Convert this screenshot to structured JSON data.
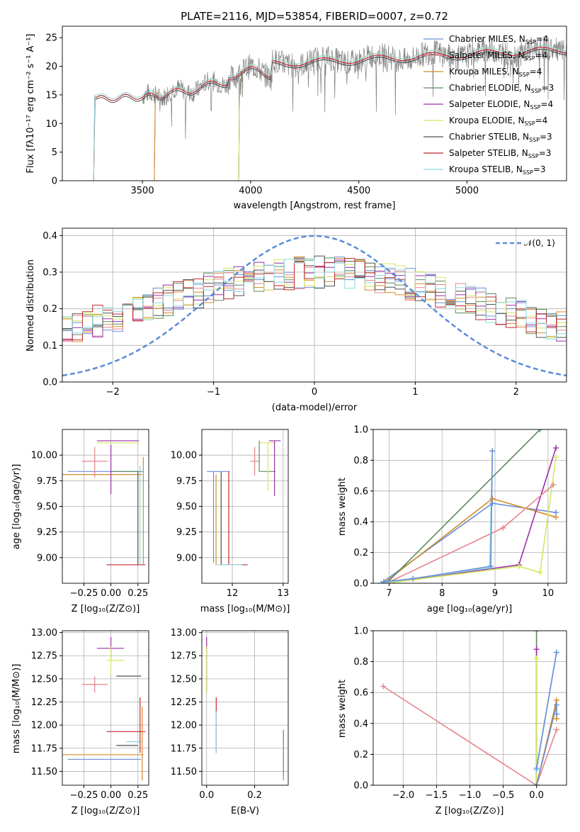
{
  "chart_data": [
    {
      "type": "line",
      "title": "PLATE=2116, MJD=53854, FIBERID=0007, z=0.72",
      "xlabel": "wavelength [Angstrom, rest frame]",
      "ylabel": "Flux [fλ10⁻¹⁷ erg cm⁻² s⁻¹ A⁻¹]",
      "xlim": [
        3130,
        5460
      ],
      "ylim": [
        0,
        27
      ],
      "xticks": [
        3500,
        4000,
        4500,
        5000
      ],
      "yticks": [
        0,
        5,
        10,
        15,
        20,
        25
      ],
      "grid": false,
      "legend_placement": "right",
      "observed_spectrum": {
        "color": "#808080",
        "start": 3280,
        "end": 5460
      },
      "legend": [
        {
          "label": "Chabrier MILES, N_SSP=4",
          "color": "#6a8fd6"
        },
        {
          "label": "Salpeter MILES, N_SSP=4",
          "color": "#e8848c"
        },
        {
          "label": "Kroupa MILES, N_SSP=4",
          "color": "#d48b2a"
        },
        {
          "label": "Chabrier ELODIE, N_SSP=3",
          "color": "#5c8c5c"
        },
        {
          "label": "Salpeter ELODIE, N_SSP=4",
          "color": "#9c2fa8"
        },
        {
          "label": "Kroupa ELODIE, N_SSP=4",
          "color": "#d4e85c"
        },
        {
          "label": "Chabrier STELIB, N_SSP=3",
          "color": "#505050"
        },
        {
          "label": "Salpeter STELIB, N_SSP=3",
          "color": "#c0282a"
        },
        {
          "label": "Kroupa STELIB, N_SSP=3",
          "color": "#8cd8e0"
        }
      ],
      "model_starts": {
        "MILES": 3560,
        "ELODIE": 3950,
        "STELIB": 3280
      }
    },
    {
      "type": "line",
      "xlabel": "(data-model)/error",
      "ylabel": "Normed distribution",
      "xlim": [
        -2.5,
        2.5
      ],
      "ylim": [
        0,
        0.42
      ],
      "xticks": [
        -2,
        -1,
        0,
        1,
        2
      ],
      "yticks": [
        0.0,
        0.1,
        0.2,
        0.3,
        0.4
      ],
      "grid": true,
      "legend_placement": "top-right",
      "gaussian": {
        "label": "𝒩(0, 1)",
        "mean": 0,
        "sigma": 1,
        "color": "#5b8cd8"
      },
      "histogram_colors": [
        "#6a8fd6",
        "#e8848c",
        "#d48b2a",
        "#5c8c5c",
        "#9c2fa8",
        "#d4e85c",
        "#505050",
        "#c0282a",
        "#8cd8e0"
      ]
    },
    {
      "type": "scatter",
      "xlabel": "Z [log₁₀(Z/Z⊙)]",
      "ylabel": "age  [log₁₀(age/yr)]",
      "xlim": [
        -0.45,
        0.35
      ],
      "ylim": [
        8.75,
        10.25
      ],
      "xticks": [
        -0.25,
        0.0,
        0.25
      ],
      "yticks": [
        9.0,
        9.25,
        9.5,
        9.75,
        10.0
      ],
      "grid": true,
      "points": [
        {
          "x": -0.4,
          "y": 9.84,
          "x0": -0.4,
          "x1": 0.3,
          "y0": 9.84,
          "y1": 9.84,
          "c": "#6a8fd6"
        },
        {
          "x": -0.15,
          "y": 9.94,
          "x0": -0.27,
          "x1": -0.03,
          "y0": 9.78,
          "y1": 10.08,
          "c": "#e8848c"
        },
        {
          "x": -0.45,
          "y": 9.81,
          "x0": -0.45,
          "x1": 0.29,
          "y0": 9.81,
          "y1": 9.81,
          "c": "#d48b2a"
        },
        {
          "x": 0.0,
          "y": 10.14,
          "x0": -0.13,
          "x1": 0.26,
          "y0": 10.14,
          "y1": 10.14,
          "c": "#9c2fa8"
        },
        {
          "x": 0.1,
          "y": 10.12,
          "x0": -0.13,
          "x1": 0.26,
          "y0": 10.12,
          "y1": 10.12,
          "c": "#d4e85c"
        },
        {
          "x": 0.0,
          "y": 9.84,
          "x0": 0.0,
          "x1": 0.28,
          "y0": 9.84,
          "y1": 9.84,
          "c": "#5c8c5c"
        },
        {
          "x": 0.27,
          "y": 8.93,
          "x0": -0.04,
          "x1": 0.32,
          "y0": 8.93,
          "y1": 8.93,
          "c": "#c0282a"
        },
        {
          "x": 0.27,
          "y": 9.4,
          "x0": 0.27,
          "x1": 0.27,
          "y0": 8.93,
          "y1": 9.9,
          "c": "#8cd8e0"
        },
        {
          "x": 0.3,
          "y": 9.4,
          "x0": 0.3,
          "x1": 0.3,
          "y0": 8.93,
          "y1": 9.98,
          "c": "#d48b2a"
        },
        {
          "x": 0.0,
          "y": 9.7,
          "x0": 0.0,
          "x1": 0.0,
          "y0": 9.62,
          "y1": 10.1,
          "c": "#9c2fa8"
        },
        {
          "x": 0.25,
          "y": 9.4,
          "x0": 0.25,
          "x1": 0.25,
          "y0": 8.93,
          "y1": 9.84,
          "c": "#505050"
        }
      ]
    },
    {
      "type": "scatter",
      "xlabel": "mass [log₁₀(M/M⊙)]",
      "xlim": [
        11.4,
        13.1
      ],
      "ylim": [
        8.75,
        10.25
      ],
      "xticks": [
        12,
        13
      ],
      "yticks": [
        9.0,
        9.25,
        9.5,
        9.75,
        10.0
      ],
      "grid": true,
      "points": [
        {
          "x": 11.63,
          "y": 9.84,
          "x0": 11.5,
          "x1": 11.95,
          "y0": 8.95,
          "y1": 9.84,
          "c": "#6a8fd6"
        },
        {
          "x": 11.68,
          "y": 9.4,
          "x0": 11.68,
          "x1": 11.68,
          "y0": 8.93,
          "y1": 9.81,
          "c": "#d48b2a"
        },
        {
          "x": 11.78,
          "y": 9.4,
          "x0": 11.78,
          "x1": 11.78,
          "y0": 8.93,
          "y1": 9.84,
          "c": "#505050"
        },
        {
          "x": 11.93,
          "y": 8.93,
          "x0": 11.76,
          "x1": 12.3,
          "y0": 8.93,
          "y1": 9.84,
          "c": "#c0282a"
        },
        {
          "x": 11.82,
          "y": 8.93,
          "x0": 11.7,
          "x1": 12.2,
          "y0": 8.93,
          "y1": 8.93,
          "c": "#8cd8e0"
        },
        {
          "x": 12.44,
          "y": 9.94,
          "x0": 12.35,
          "x1": 12.53,
          "y0": 9.8,
          "y1": 10.08,
          "c": "#e8848c"
        },
        {
          "x": 12.53,
          "y": 9.84,
          "x0": 12.53,
          "x1": 12.85,
          "y0": 9.84,
          "y1": 10.14,
          "c": "#5c8c5c"
        },
        {
          "x": 12.7,
          "y": 10.12,
          "x0": 12.55,
          "x1": 12.82,
          "y0": 9.65,
          "y1": 10.12,
          "c": "#d4e85c"
        },
        {
          "x": 12.83,
          "y": 10.14,
          "x0": 12.72,
          "x1": 12.95,
          "y0": 9.6,
          "y1": 10.14,
          "c": "#9c2fa8"
        }
      ]
    },
    {
      "type": "line",
      "xlabel": "age  [log₁₀(age/yr)]",
      "ylabel": "mass weight",
      "xlim": [
        6.7,
        10.35
      ],
      "ylim": [
        0,
        1.0
      ],
      "xticks": [
        7,
        8,
        9,
        10
      ],
      "yticks": [
        0.0,
        0.2,
        0.4,
        0.6,
        0.8,
        1.0
      ],
      "grid": true,
      "series": [
        {
          "color": "#6a8fd6",
          "x": [
            6.85,
            8.95,
            10.15
          ],
          "y": [
            0.0,
            0.52,
            0.46
          ]
        },
        {
          "color": "#d48b2a",
          "x": [
            6.9,
            8.95,
            10.15
          ],
          "y": [
            0.0,
            0.55,
            0.43
          ]
        },
        {
          "color": "#5c8c5c",
          "x": [
            6.95,
            9.85
          ],
          "y": [
            0.0,
            1.0
          ]
        },
        {
          "color": "#9c2fa8",
          "x": [
            6.95,
            9.45,
            10.15
          ],
          "y": [
            0.0,
            0.12,
            0.88
          ]
        },
        {
          "color": "#d4e85c",
          "x": [
            6.95,
            9.45,
            9.85,
            10.15
          ],
          "y": [
            0.0,
            0.11,
            0.07,
            0.82
          ]
        },
        {
          "color": "#e8848c",
          "x": [
            6.95,
            9.15,
            10.1
          ],
          "y": [
            0.0,
            0.36,
            0.64
          ]
        },
        {
          "color": "#8cd8e0",
          "x": [
            6.85,
            7.45,
            8.9,
            8.95
          ],
          "y": [
            0.0,
            0.03,
            0.1,
            0.86
          ]
        },
        {
          "color": "#6a8fd6",
          "x": [
            6.9,
            7.45,
            8.92,
            8.95
          ],
          "y": [
            0.01,
            0.03,
            0.11,
            0.86
          ]
        }
      ]
    },
    {
      "type": "scatter",
      "xlabel": "Z [log₁₀(Z/Z⊙)]",
      "ylabel": "mass [log₁₀(M/M⊙)]",
      "xlim": [
        -0.45,
        0.35
      ],
      "ylim": [
        11.35,
        13.02
      ],
      "xticks": [
        -0.25,
        0.0,
        0.25
      ],
      "yticks": [
        11.5,
        11.75,
        12.0,
        12.25,
        12.5,
        12.75,
        13.0
      ],
      "grid": true,
      "points": [
        {
          "x": -0.4,
          "y": 11.63,
          "x0": -0.4,
          "x1": 0.28,
          "y0": 11.63,
          "y1": 11.63,
          "c": "#6a8fd6"
        },
        {
          "x": -0.45,
          "y": 11.68,
          "x0": -0.45,
          "x1": 0.3,
          "y0": 11.68,
          "y1": 11.68,
          "c": "#d48b2a"
        },
        {
          "x": -0.15,
          "y": 12.44,
          "x0": -0.27,
          "x1": -0.03,
          "y0": 12.35,
          "y1": 12.53,
          "c": "#e8848c"
        },
        {
          "x": 0.0,
          "y": 12.83,
          "x0": -0.13,
          "x1": 0.12,
          "y0": 12.72,
          "y1": 12.95,
          "c": "#9c2fa8"
        },
        {
          "x": 0.0,
          "y": 12.7,
          "x0": -0.04,
          "x1": 0.12,
          "y0": 12.55,
          "y1": 12.85,
          "c": "#d4e85c"
        },
        {
          "x": 0.1,
          "y": 12.53,
          "x0": 0.05,
          "x1": 0.28,
          "y0": 12.53,
          "y1": 12.53,
          "c": "#505050"
        },
        {
          "x": 0.05,
          "y": 11.93,
          "x0": -0.04,
          "x1": 0.32,
          "y0": 11.93,
          "y1": 11.93,
          "c": "#c0282a"
        },
        {
          "x": 0.18,
          "y": 11.82,
          "x0": 0.14,
          "x1": 0.28,
          "y0": 11.82,
          "y1": 11.82,
          "c": "#8cd8e0"
        },
        {
          "x": 0.27,
          "y": 12.0,
          "x0": 0.27,
          "x1": 0.27,
          "y0": 11.7,
          "y1": 12.3,
          "c": "#c0282a"
        },
        {
          "x": 0.29,
          "y": 11.8,
          "x0": 0.29,
          "x1": 0.29,
          "y0": 11.4,
          "y1": 12.2,
          "c": "#d48b2a"
        },
        {
          "x": 0.25,
          "y": 11.78,
          "x0": 0.05,
          "x1": 0.25,
          "y0": 11.78,
          "y1": 11.78,
          "c": "#505050"
        }
      ]
    },
    {
      "type": "scatter",
      "xlabel": "E(B-V)",
      "xlim": [
        -0.02,
        0.34
      ],
      "ylim": [
        11.35,
        13.02
      ],
      "xticks": [
        0.0,
        0.2
      ],
      "yticks": [
        11.5,
        11.75,
        12.0,
        12.25,
        12.5,
        12.75,
        13.0
      ],
      "grid": true,
      "points": [
        {
          "x": 0.0,
          "y": 12.7,
          "x0": 0.0,
          "x1": 0.0,
          "y0": 12.35,
          "y1": 12.95,
          "c": "#9c2fa8"
        },
        {
          "x": 0.0,
          "y": 12.6,
          "x0": 0.0,
          "x1": 0.0,
          "y0": 12.35,
          "y1": 12.85,
          "c": "#d4e85c"
        },
        {
          "x": 0.04,
          "y": 12.0,
          "x0": 0.04,
          "x1": 0.04,
          "y0": 11.7,
          "y1": 12.3,
          "c": "#c0282a"
        },
        {
          "x": 0.04,
          "y": 11.9,
          "x0": 0.04,
          "x1": 0.04,
          "y0": 11.7,
          "y1": 12.15,
          "c": "#8cd8e0"
        },
        {
          "x": 0.32,
          "y": 11.65,
          "x0": 0.32,
          "x1": 0.32,
          "y0": 11.4,
          "y1": 11.95,
          "c": "#d48b2a"
        },
        {
          "x": 0.32,
          "y": 11.7,
          "x0": 0.32,
          "x1": 0.32,
          "y0": 11.45,
          "y1": 11.95,
          "c": "#6a8fd6"
        }
      ]
    },
    {
      "type": "line",
      "xlabel": "Z [log₁₀(Z/Z⊙)]",
      "ylabel": "mass weight",
      "xlim": [
        -2.45,
        0.45
      ],
      "ylim": [
        0,
        1.0
      ],
      "xticks": [
        -2.0,
        -1.5,
        -1.0,
        -0.5,
        0.0
      ],
      "yticks": [
        0.0,
        0.2,
        0.4,
        0.6,
        0.8,
        1.0
      ],
      "grid": true,
      "series": [
        {
          "color": "#e8848c",
          "x": [
            -2.3,
            0.0,
            0.3
          ],
          "y": [
            0.64,
            0.0,
            0.36
          ]
        },
        {
          "color": "#5c8c5c",
          "x": [
            0.0,
            0.0
          ],
          "y": [
            0.0,
            1.0
          ]
        },
        {
          "color": "#9c2fa8",
          "x": [
            0.0,
            0.0
          ],
          "y": [
            0.0,
            0.88
          ]
        },
        {
          "color": "#d4e85c",
          "x": [
            0.0,
            0.0
          ],
          "y": [
            0.0,
            0.82
          ]
        },
        {
          "color": "#d48b2a",
          "x": [
            0.0,
            0.3,
            0.3
          ],
          "y": [
            0.0,
            0.55,
            0.43
          ]
        },
        {
          "color": "#6a8fd6",
          "x": [
            0.0,
            0.3,
            0.3
          ],
          "y": [
            0.0,
            0.52,
            0.46
          ]
        },
        {
          "color": "#8cd8e0",
          "x": [
            0.0,
            0.3
          ],
          "y": [
            0.1,
            0.86
          ]
        },
        {
          "color": "#6a8fd6",
          "x": [
            0.0,
            0.3
          ],
          "y": [
            0.11,
            0.86
          ]
        }
      ]
    }
  ]
}
